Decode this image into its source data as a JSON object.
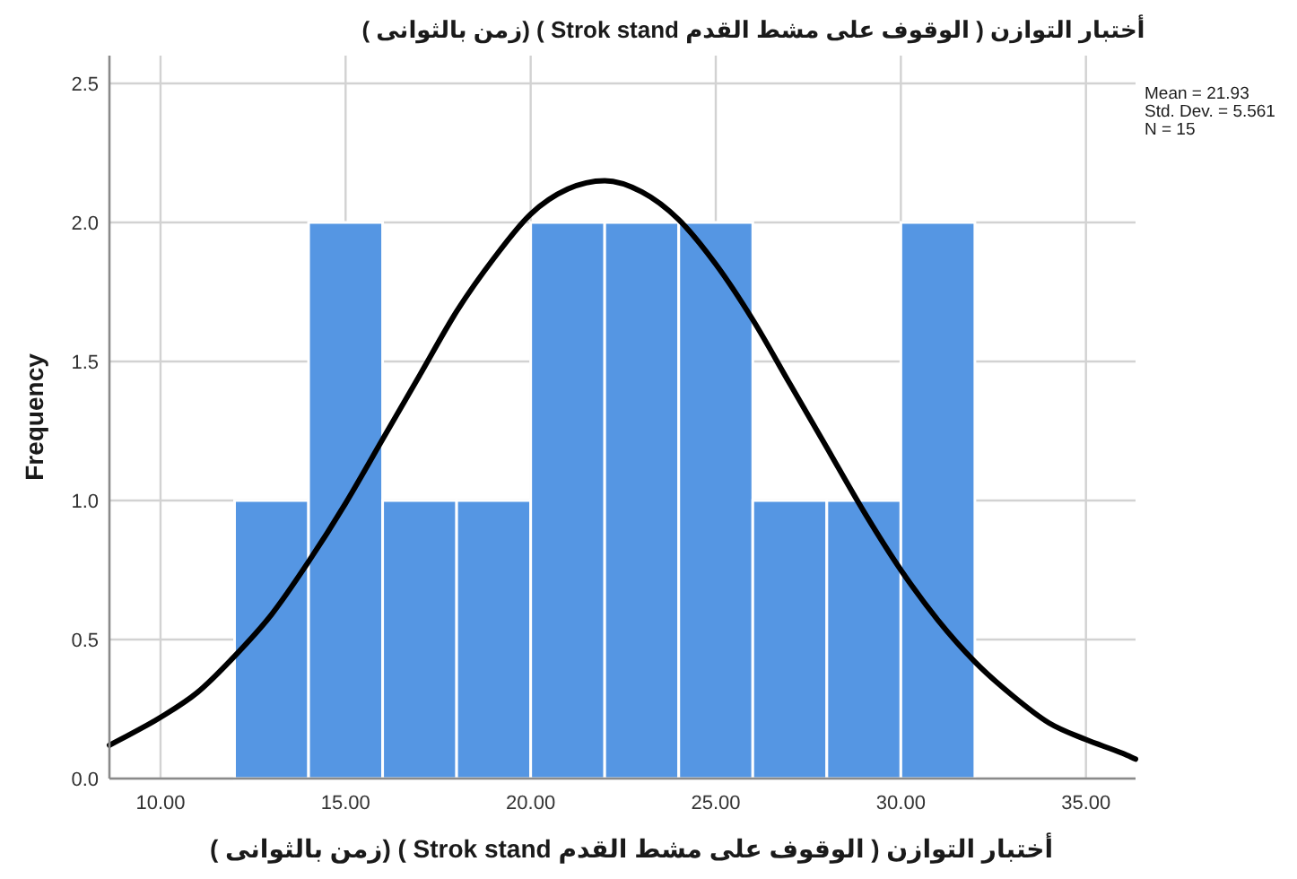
{
  "chart_data": {
    "type": "histogram",
    "title": "أختبار التوازن ( الوقوف على مشط القدم Strok stand ) (زمن بالثوانى )",
    "xlabel": "أختبار التوازن ( الوقوف على مشط القدم Strok stand ) (زمن بالثوانى )",
    "ylabel": "Frequency",
    "color": "#5596e3",
    "bins": [
      12,
      14,
      16,
      18,
      20,
      22,
      24,
      26,
      28,
      30,
      32
    ],
    "values": [
      1,
      2,
      1,
      1,
      2,
      2,
      2,
      1,
      1,
      2
    ],
    "series": [
      {
        "type": "line",
        "color": "#000000",
        "x": [
          8.62,
          10,
          11,
          12,
          13,
          14,
          15,
          16,
          17,
          18,
          19,
          20,
          21,
          22,
          23,
          24,
          25,
          26,
          27,
          28,
          29,
          30,
          31,
          32,
          33,
          34,
          35,
          36,
          36.34
        ],
        "values": [
          0.12,
          0.22,
          0.31,
          0.44,
          0.59,
          0.78,
          0.99,
          1.22,
          1.45,
          1.68,
          1.87,
          2.03,
          2.12,
          2.15,
          2.11,
          2.01,
          1.85,
          1.65,
          1.42,
          1.19,
          0.96,
          0.75,
          0.57,
          0.42,
          0.3,
          0.2,
          0.14,
          0.09,
          0.07
        ]
      }
    ],
    "xlim": [
      8.62,
      36.34
    ],
    "ylim": [
      0,
      2.6
    ],
    "xticks": [
      {
        "value": 10,
        "label": "10.00"
      },
      {
        "value": 15,
        "label": "15.00"
      },
      {
        "value": 20,
        "label": "20.00"
      },
      {
        "value": 25,
        "label": "25.00"
      },
      {
        "value": 30,
        "label": "30.00"
      },
      {
        "value": 35,
        "label": "35.00"
      }
    ],
    "yticks": [
      {
        "value": 0,
        "label": "0.0"
      },
      0.5,
      {
        "value": 1,
        "label": "1.0"
      },
      1.5,
      {
        "value": 2,
        "label": "2.0"
      },
      2.5
    ],
    "grid": true,
    "annotations": [
      "Mean = 21.93",
      "Std. Dev. = 5.561",
      "N = 15"
    ]
  }
}
